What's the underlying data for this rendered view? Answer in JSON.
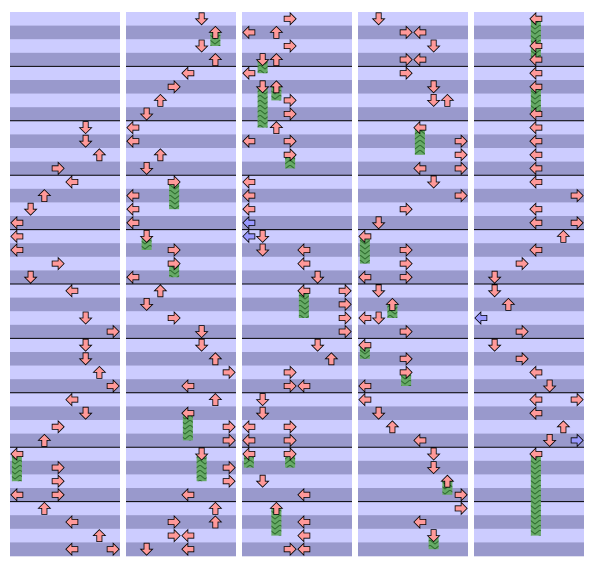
{
  "chart": {
    "rows": 40,
    "lanes": 8,
    "beats_per_measure": 4,
    "lane_directions": [
      "left",
      "down",
      "up",
      "right",
      "left",
      "down",
      "up",
      "right"
    ],
    "stripe_colors": [
      "#ccccff",
      "#9999cc"
    ],
    "measure_line_color": "#000000",
    "note_color": "#ff9999",
    "alt_note_color": "#9999ff",
    "hold_color": "#66aa66",
    "panels": [
      {
        "notes": [
          [
            8,
            5
          ],
          [
            9,
            5
          ],
          [
            10,
            6
          ],
          [
            11,
            3
          ],
          [
            12,
            4
          ],
          [
            13,
            2
          ],
          [
            14,
            1
          ],
          [
            15,
            0
          ],
          [
            16,
            0
          ],
          [
            17,
            0
          ],
          [
            18,
            3
          ],
          [
            19,
            1
          ],
          [
            20,
            4
          ],
          [
            22,
            5
          ],
          [
            23,
            7
          ],
          [
            24,
            5
          ],
          [
            25,
            5
          ],
          [
            26,
            6
          ],
          [
            27,
            7
          ],
          [
            28,
            4
          ],
          [
            29,
            5
          ],
          [
            30,
            3
          ],
          [
            31,
            2
          ],
          [
            33,
            3
          ],
          [
            34,
            3
          ],
          [
            35,
            0
          ],
          [
            35,
            3
          ],
          [
            36,
            2
          ],
          [
            37,
            4
          ],
          [
            38,
            6
          ],
          [
            39,
            4
          ],
          [
            39,
            7
          ]
        ],
        "holds": [
          [
            32,
            0,
            2
          ]
        ],
        "alt_notes": []
      },
      {
        "notes": [
          [
            0,
            5
          ],
          [
            2,
            5
          ],
          [
            3,
            6
          ],
          [
            4,
            4
          ],
          [
            5,
            3
          ],
          [
            6,
            2
          ],
          [
            7,
            1
          ],
          [
            8,
            0
          ],
          [
            9,
            0
          ],
          [
            10,
            2
          ],
          [
            11,
            1
          ],
          [
            13,
            0
          ],
          [
            14,
            0
          ],
          [
            15,
            0
          ],
          [
            17,
            3
          ],
          [
            19,
            0
          ],
          [
            20,
            2
          ],
          [
            21,
            1
          ],
          [
            22,
            3
          ],
          [
            23,
            5
          ],
          [
            24,
            5
          ],
          [
            25,
            6
          ],
          [
            26,
            7
          ],
          [
            27,
            4
          ],
          [
            28,
            6
          ],
          [
            30,
            7
          ],
          [
            31,
            7
          ],
          [
            33,
            7
          ],
          [
            34,
            7
          ],
          [
            35,
            4
          ],
          [
            36,
            6
          ],
          [
            37,
            3
          ],
          [
            37,
            6
          ],
          [
            38,
            3
          ],
          [
            38,
            4
          ],
          [
            39,
            1
          ],
          [
            39,
            4
          ]
        ],
        "holds": [
          [
            1,
            6,
            1
          ],
          [
            12,
            3,
            2
          ],
          [
            16,
            1,
            1
          ],
          [
            18,
            3,
            1
          ],
          [
            29,
            4,
            2
          ],
          [
            32,
            5,
            2
          ]
        ],
        "alt_notes": []
      },
      {
        "notes": [
          [
            0,
            3
          ],
          [
            1,
            0
          ],
          [
            1,
            2
          ],
          [
            2,
            3
          ],
          [
            3,
            2
          ],
          [
            4,
            0
          ],
          [
            6,
            3
          ],
          [
            7,
            3
          ],
          [
            8,
            2
          ],
          [
            9,
            0
          ],
          [
            9,
            3
          ],
          [
            12,
            0
          ],
          [
            13,
            0
          ],
          [
            14,
            0
          ],
          [
            16,
            1
          ],
          [
            17,
            1
          ],
          [
            17,
            4
          ],
          [
            18,
            4
          ],
          [
            19,
            5
          ],
          [
            20,
            7
          ],
          [
            21,
            7
          ],
          [
            22,
            7
          ],
          [
            23,
            7
          ],
          [
            24,
            5
          ],
          [
            25,
            6
          ],
          [
            26,
            3
          ],
          [
            27,
            3
          ],
          [
            27,
            4
          ],
          [
            28,
            1
          ],
          [
            29,
            1
          ],
          [
            30,
            0
          ],
          [
            30,
            3
          ],
          [
            31,
            0
          ],
          [
            31,
            3
          ],
          [
            34,
            1
          ],
          [
            35,
            4
          ],
          [
            37,
            4
          ],
          [
            38,
            4
          ],
          [
            39,
            3
          ],
          [
            39,
            4
          ]
        ],
        "holds": [
          [
            3,
            1,
            1
          ],
          [
            5,
            1,
            3
          ],
          [
            5,
            2,
            1
          ],
          [
            10,
            3,
            1
          ],
          [
            20,
            4,
            2
          ],
          [
            32,
            0,
            1
          ],
          [
            32,
            3,
            1
          ],
          [
            36,
            2,
            2
          ]
        ],
        "alt_notes": [
          [
            15,
            0
          ],
          [
            16,
            0
          ]
        ]
      },
      {
        "notes": [
          [
            0,
            1
          ],
          [
            1,
            3
          ],
          [
            1,
            4
          ],
          [
            2,
            5
          ],
          [
            3,
            3
          ],
          [
            3,
            4
          ],
          [
            4,
            3
          ],
          [
            5,
            5
          ],
          [
            6,
            5
          ],
          [
            6,
            6
          ],
          [
            9,
            7
          ],
          [
            10,
            7
          ],
          [
            11,
            4
          ],
          [
            11,
            7
          ],
          [
            12,
            5
          ],
          [
            13,
            7
          ],
          [
            14,
            3
          ],
          [
            15,
            1
          ],
          [
            17,
            3
          ],
          [
            18,
            3
          ],
          [
            19,
            0
          ],
          [
            19,
            3
          ],
          [
            20,
            1
          ],
          [
            22,
            1
          ],
          [
            22,
            0
          ],
          [
            23,
            3
          ],
          [
            25,
            3
          ],
          [
            27,
            0
          ],
          [
            28,
            0
          ],
          [
            29,
            1
          ],
          [
            30,
            2
          ],
          [
            31,
            4
          ],
          [
            32,
            5
          ],
          [
            33,
            5
          ],
          [
            35,
            7
          ],
          [
            36,
            7
          ],
          [
            37,
            4
          ]
        ],
        "holds": [
          [
            8,
            4,
            2
          ],
          [
            16,
            0,
            2
          ],
          [
            21,
            2,
            1
          ],
          [
            24,
            0,
            1
          ],
          [
            26,
            3,
            1
          ],
          [
            34,
            6,
            1
          ],
          [
            38,
            5,
            1
          ]
        ],
        "alt_notes": []
      },
      {
        "notes": [
          [
            2,
            4
          ],
          [
            3,
            4
          ],
          [
            4,
            4
          ],
          [
            7,
            4
          ],
          [
            8,
            4
          ],
          [
            9,
            4
          ],
          [
            10,
            4
          ],
          [
            11,
            4
          ],
          [
            12,
            4
          ],
          [
            13,
            7
          ],
          [
            14,
            4
          ],
          [
            15,
            4
          ],
          [
            15,
            7
          ],
          [
            16,
            6
          ],
          [
            17,
            4
          ],
          [
            18,
            3
          ],
          [
            19,
            1
          ],
          [
            20,
            1
          ],
          [
            21,
            2
          ],
          [
            23,
            3
          ],
          [
            24,
            1
          ],
          [
            25,
            3
          ],
          [
            26,
            4
          ],
          [
            27,
            5
          ],
          [
            28,
            4
          ],
          [
            28,
            7
          ],
          [
            29,
            4
          ],
          [
            30,
            6
          ],
          [
            31,
            5
          ]
        ],
        "holds": [
          [
            0,
            4,
            3
          ],
          [
            5,
            4,
            2
          ],
          [
            32,
            4,
            6
          ]
        ],
        "alt_notes": [
          [
            22,
            0
          ],
          [
            31,
            7
          ]
        ]
      }
    ]
  }
}
